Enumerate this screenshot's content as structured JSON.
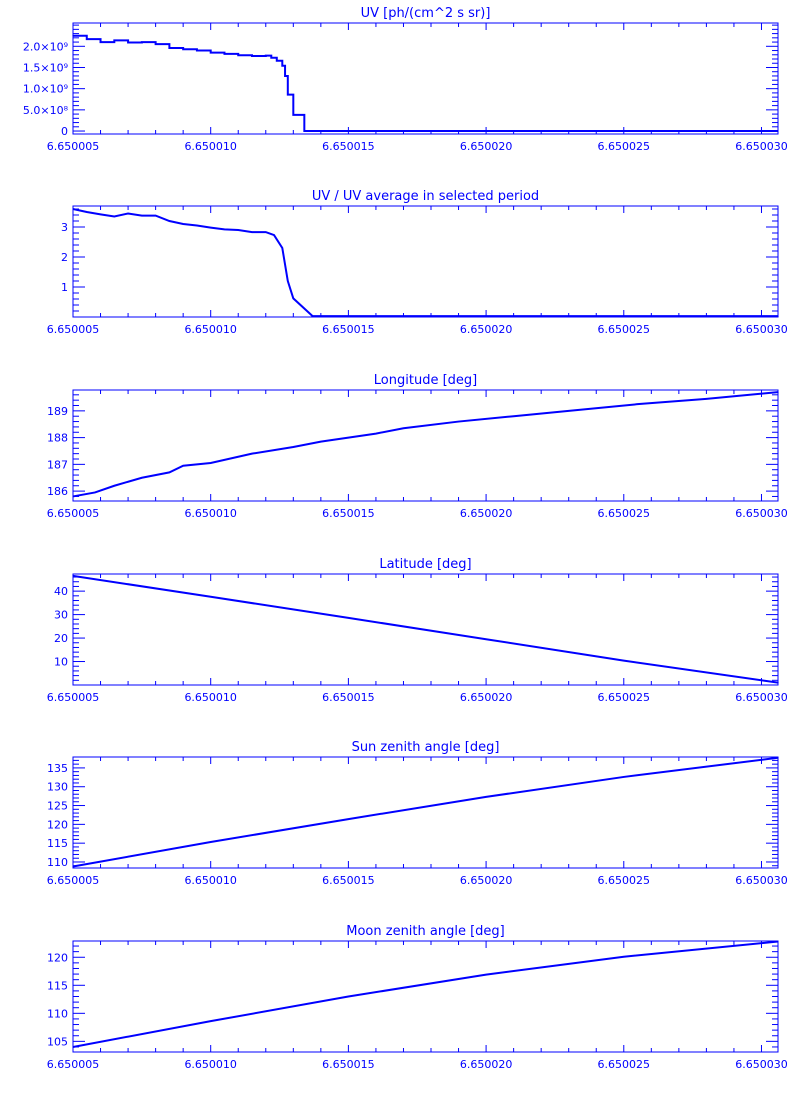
{
  "color": "#0000ff",
  "chart_data": [
    {
      "type": "line",
      "step": true,
      "title": "UV [ph/(cm^2 s sr)]",
      "xlim": [
        6.650005,
        6.6500306
      ],
      "ylim": [
        -70000000,
        2550000000
      ],
      "xticks": [
        6.650005,
        6.65001,
        6.650015,
        6.65002,
        6.650025,
        6.65003
      ],
      "xtick_labels": [
        "6.650005",
        "6.650010",
        "6.650015",
        "6.650020",
        "6.650025",
        "6.650030"
      ],
      "yticks": [
        0,
        500000000,
        1000000000,
        1500000000,
        2000000000
      ],
      "ytick_labels": [
        "0",
        "5.0×10⁸",
        "1.0×10⁹",
        "1.5×10⁹",
        "2.0×10⁹"
      ],
      "yminor": 100000000,
      "x": [
        6.650005,
        6.6500055,
        6.650006,
        6.6500065,
        6.650007,
        6.6500075,
        6.650008,
        6.6500085,
        6.650009,
        6.6500095,
        6.65001,
        6.6500105,
        6.650011,
        6.6500115,
        6.650012,
        6.6500122,
        6.6500124,
        6.6500126,
        6.6500127,
        6.6500128,
        6.650013,
        6.6500133,
        6.6500134,
        6.6500306
      ],
      "y": [
        2250000000,
        2170000000,
        2100000000,
        2140000000,
        2090000000,
        2100000000,
        2050000000,
        1960000000,
        1930000000,
        1900000000,
        1850000000,
        1820000000,
        1790000000,
        1770000000,
        1780000000,
        1730000000,
        1660000000,
        1540000000,
        1300000000,
        860000000,
        380000000,
        380000000,
        0,
        0
      ]
    },
    {
      "type": "line",
      "title": "UV / UV average in selected period",
      "xlim": [
        6.650005,
        6.6500306
      ],
      "ylim": [
        0,
        3.7
      ],
      "xticks": [
        6.650005,
        6.65001,
        6.650015,
        6.65002,
        6.650025,
        6.65003
      ],
      "xtick_labels": [
        "6.650005",
        "6.650010",
        "6.650015",
        "6.650020",
        "6.650025",
        "6.650030"
      ],
      "yticks": [
        1,
        2,
        3
      ],
      "ytick_labels": [
        "1",
        "2",
        "3"
      ],
      "yminor": 0.2,
      "x": [
        6.650005,
        6.6500055,
        6.650006,
        6.6500065,
        6.650007,
        6.6500075,
        6.650008,
        6.6500085,
        6.650009,
        6.6500095,
        6.65001,
        6.6500105,
        6.650011,
        6.6500115,
        6.650012,
        6.6500123,
        6.6500126,
        6.6500128,
        6.650013,
        6.6500137,
        6.6500306
      ],
      "y": [
        3.6,
        3.5,
        3.42,
        3.35,
        3.45,
        3.38,
        3.38,
        3.2,
        3.1,
        3.05,
        2.98,
        2.92,
        2.9,
        2.83,
        2.83,
        2.73,
        2.3,
        1.2,
        0.62,
        0.03,
        0.03
      ]
    },
    {
      "type": "line",
      "title": "Longitude [deg]",
      "xlim": [
        6.650005,
        6.6500306
      ],
      "ylim": [
        185.63,
        189.78
      ],
      "xticks": [
        6.650005,
        6.65001,
        6.650015,
        6.65002,
        6.650025,
        6.65003
      ],
      "xtick_labels": [
        "6.650005",
        "6.650010",
        "6.650015",
        "6.650020",
        "6.650025",
        "6.650030"
      ],
      "yticks": [
        186,
        187,
        188,
        189
      ],
      "ytick_labels": [
        "186",
        "187",
        "188",
        "189"
      ],
      "yminor": 0.2,
      "x": [
        6.650005,
        6.6500058,
        6.6500065,
        6.6500075,
        6.6500085,
        6.650009,
        6.65001,
        6.6500115,
        6.650013,
        6.650014,
        6.650015,
        6.650016,
        6.650017,
        6.650019,
        6.650021,
        6.650023,
        6.6500255,
        6.650028,
        6.6500306
      ],
      "y": [
        185.8,
        185.95,
        186.2,
        186.5,
        186.7,
        186.95,
        187.05,
        187.4,
        187.65,
        187.85,
        188.0,
        188.15,
        188.35,
        188.6,
        188.8,
        189.0,
        189.25,
        189.45,
        189.7
      ]
    },
    {
      "type": "line",
      "title": "Latitude [deg]",
      "xlim": [
        6.650005,
        6.6500306
      ],
      "ylim": [
        0,
        47.3
      ],
      "xticks": [
        6.650005,
        6.65001,
        6.650015,
        6.65002,
        6.650025,
        6.65003
      ],
      "xtick_labels": [
        "6.650005",
        "6.650010",
        "6.650015",
        "6.650020",
        "6.650025",
        "6.650030"
      ],
      "yticks": [
        10,
        20,
        30,
        40
      ],
      "ytick_labels": [
        "10",
        "20",
        "30",
        "40"
      ],
      "yminor": 2,
      "x": [
        6.650005,
        6.65001,
        6.650015,
        6.65002,
        6.650025,
        6.6500306
      ],
      "y": [
        46.5,
        37.6,
        28.6,
        19.5,
        10.4,
        1.0
      ]
    },
    {
      "type": "line",
      "title": "Sun zenith angle [deg]",
      "xlim": [
        6.650005,
        6.6500306
      ],
      "ylim": [
        108.4,
        137.9
      ],
      "xticks": [
        6.650005,
        6.65001,
        6.650015,
        6.65002,
        6.650025,
        6.65003
      ],
      "xtick_labels": [
        "6.650005",
        "6.650010",
        "6.650015",
        "6.650020",
        "6.650025",
        "6.650030"
      ],
      "yticks": [
        110,
        115,
        120,
        125,
        130,
        135
      ],
      "ytick_labels": [
        "110",
        "115",
        "120",
        "125",
        "130",
        "135"
      ],
      "yminor": 1,
      "x": [
        6.650005,
        6.65001,
        6.650015,
        6.65002,
        6.650025,
        6.6500306
      ],
      "y": [
        108.8,
        115.3,
        121.4,
        127.3,
        132.6,
        137.7
      ]
    },
    {
      "type": "line",
      "title": "Moon zenith angle [deg]",
      "xlim": [
        6.650005,
        6.6500306
      ],
      "ylim": [
        103.1,
        122.9
      ],
      "xticks": [
        6.650005,
        6.65001,
        6.650015,
        6.65002,
        6.650025,
        6.65003
      ],
      "xtick_labels": [
        "6.650005",
        "6.650010",
        "6.650015",
        "6.650020",
        "6.650025",
        "6.650030"
      ],
      "yticks": [
        105,
        110,
        115,
        120
      ],
      "ytick_labels": [
        "105",
        "110",
        "115",
        "120"
      ],
      "yminor": 1,
      "x": [
        6.650005,
        6.65001,
        6.650015,
        6.65002,
        6.650025,
        6.6500306
      ],
      "y": [
        104.0,
        108.6,
        113.0,
        116.9,
        120.1,
        122.8
      ]
    }
  ]
}
